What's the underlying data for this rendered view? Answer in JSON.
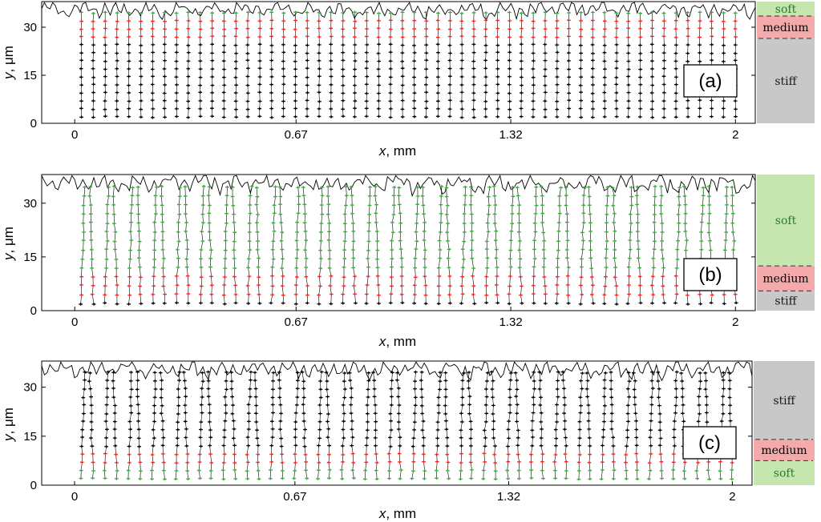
{
  "figure": {
    "x_axis_label_italic": "x",
    "x_axis_label_unit": ", mm",
    "y_axis_label_italic": "y",
    "y_axis_label_unit": ", μm"
  },
  "colors": {
    "black": "#000000",
    "red": "#ff2020",
    "green": "#3aa83a",
    "soft_fill": "#c6e6b0",
    "medium_fill": "#f4aaaa",
    "stiff_fill": "#c8c8c8",
    "soft_text": "#2d7a2d",
    "medium_text": "#000000",
    "stiff_text": "#1a1a1a"
  },
  "chart_data": [
    {
      "type": "scatter",
      "panel_label": "(a)",
      "x_range": [
        -0.1,
        2.06
      ],
      "ylim": [
        0,
        38
      ],
      "x_ticks": [
        0,
        0.67,
        1.32,
        2
      ],
      "x_tick_labels": [
        "0",
        "0.67",
        "1.32",
        "2"
      ],
      "y_ticks": [
        0,
        15,
        30
      ],
      "y_tick_labels": [
        "0",
        "15",
        "30"
      ],
      "columns": 56,
      "column_x_range": [
        0.02,
        2.0
      ],
      "surface_height_um": 35.5,
      "node_rows_um": [
        2,
        4.5,
        7,
        9.5,
        12,
        14.5,
        17,
        19.5,
        22,
        24.5,
        27,
        29.5,
        32,
        34.5
      ],
      "deformation": "none",
      "layers": [
        {
          "name": "soft",
          "from_um": 33.5,
          "to_um": 40,
          "color": "green"
        },
        {
          "name": "medium",
          "from_um": 27,
          "to_um": 33.5,
          "color": "red"
        },
        {
          "name": "stiff",
          "from_um": 0,
          "to_um": 27,
          "color": "black"
        }
      ],
      "legend": [
        {
          "label": "soft",
          "y_from": 33.5,
          "y_to": 40
        },
        {
          "label": "medium",
          "y_from": 26.5,
          "y_to": 33.5
        },
        {
          "label": "stiff",
          "y_from": 0,
          "y_to": 26.5
        }
      ]
    },
    {
      "type": "scatter",
      "panel_label": "(b)",
      "x_range": [
        -0.1,
        2.06
      ],
      "ylim": [
        0,
        38
      ],
      "x_ticks": [
        0,
        0.67,
        1.32,
        2
      ],
      "x_tick_labels": [
        "0",
        "0.67",
        "1.32",
        "2"
      ],
      "y_ticks": [
        0,
        15,
        30
      ],
      "y_tick_labels": [
        "0",
        "15",
        "30"
      ],
      "columns": 56,
      "column_x_range": [
        0.02,
        2.0
      ],
      "surface_height_um": 35.5,
      "node_rows_um": [
        2,
        4.5,
        7,
        9.5,
        12,
        14.5,
        17,
        19.5,
        22,
        24.5,
        27,
        29.5,
        32,
        34.5
      ],
      "deformation": "tufts",
      "layers": [
        {
          "name": "soft",
          "from_um": 11,
          "to_um": 40,
          "color": "green"
        },
        {
          "name": "medium",
          "from_um": 4,
          "to_um": 11,
          "color": "red"
        },
        {
          "name": "stiff",
          "from_um": 0,
          "to_um": 4,
          "color": "black"
        }
      ],
      "legend": [
        {
          "label": "soft",
          "y_from": 12.5,
          "y_to": 40
        },
        {
          "label": "medium",
          "y_from": 5.5,
          "y_to": 12.5
        },
        {
          "label": "stiff",
          "y_from": 0,
          "y_to": 5.5
        }
      ]
    },
    {
      "type": "scatter",
      "panel_label": "(c)",
      "x_range": [
        -0.1,
        2.06
      ],
      "ylim": [
        0,
        38
      ],
      "x_ticks": [
        0,
        0.67,
        1.32,
        2
      ],
      "x_tick_labels": [
        "0",
        "0.67",
        "1.32",
        "2"
      ],
      "y_ticks": [
        0,
        15,
        30
      ],
      "y_tick_labels": [
        "0",
        "15",
        "30"
      ],
      "columns": 56,
      "column_x_range": [
        0.02,
        2.0
      ],
      "surface_height_um": 35.5,
      "node_rows_um": [
        2,
        4.5,
        7,
        9.5,
        12,
        14.5,
        17,
        19.5,
        22,
        24.5,
        27,
        29.5,
        32,
        34.5
      ],
      "deformation": "tufts",
      "layers": [
        {
          "name": "stiff",
          "from_um": 11,
          "to_um": 40,
          "color": "black"
        },
        {
          "name": "medium",
          "from_um": 5.5,
          "to_um": 11,
          "color": "red"
        },
        {
          "name": "soft",
          "from_um": 0,
          "to_um": 5.5,
          "color": "green"
        }
      ],
      "legend": [
        {
          "label": "stiff",
          "y_from": 14,
          "y_to": 40
        },
        {
          "label": "medium",
          "y_from": 7.5,
          "y_to": 14
        },
        {
          "label": "soft",
          "y_from": 0,
          "y_to": 7.5
        }
      ]
    }
  ]
}
